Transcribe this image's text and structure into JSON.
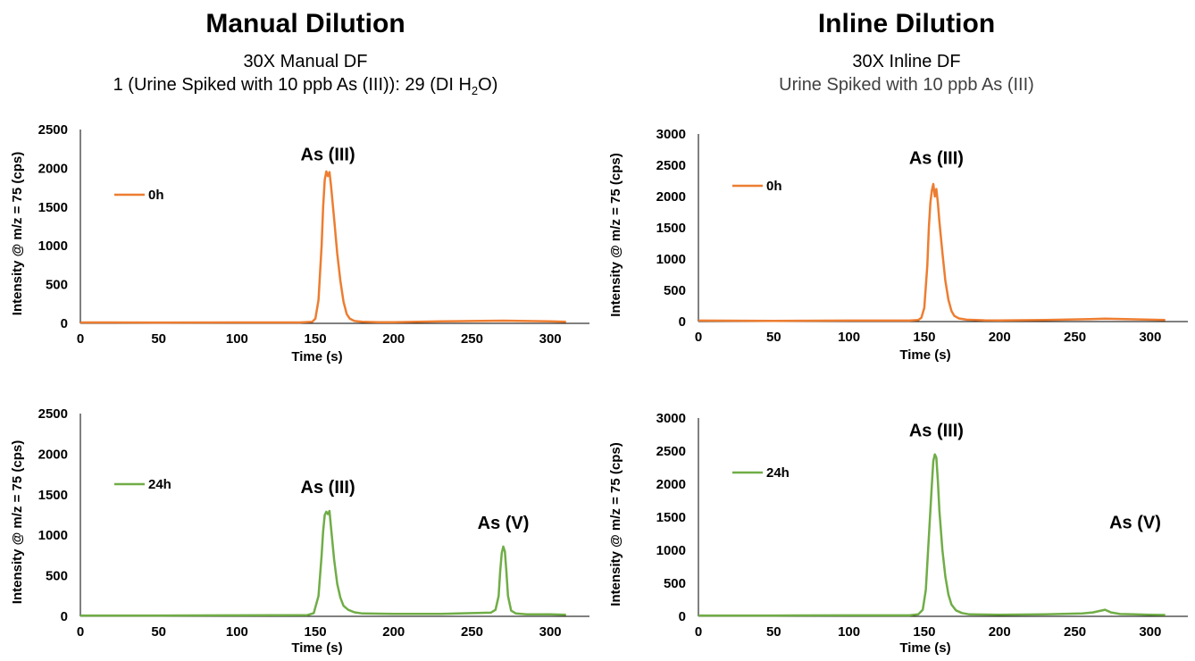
{
  "columns": [
    {
      "title": "Manual Dilution",
      "subtitle_line1": "30X Manual DF",
      "subtitle_line2_pre": "1 (Urine Spiked with 10 ppb As (III)): 29 (DI H",
      "subtitle_line2_sub": "2",
      "subtitle_line2_post": "O)"
    },
    {
      "title": "Inline Dilution",
      "subtitle_line1": "30X Inline DF",
      "subtitle_line2": "Urine Spiked with 10 ppb As (III)"
    }
  ],
  "colors": {
    "orange": "#ED7D31",
    "green": "#70AD47",
    "axis": "#000000"
  },
  "chart_data": [
    {
      "id": "manual-0h",
      "type": "line",
      "xlabel": "Time (s)",
      "ylabel": "Intensity @ m/z = 75 (cps)",
      "xlim": [
        0,
        325
      ],
      "ylim": [
        0,
        2500
      ],
      "xticks": [
        0,
        50,
        100,
        150,
        200,
        250,
        300
      ],
      "yticks": [
        0,
        500,
        1000,
        1500,
        2000,
        2500
      ],
      "grid": false,
      "legend_placement": "top-left",
      "series": [
        {
          "name": "0h",
          "color": "#ED7D31",
          "x": [
            0,
            50,
            100,
            140,
            148,
            150,
            152,
            154,
            155,
            156,
            157,
            158,
            159,
            160,
            162,
            164,
            166,
            168,
            170,
            172,
            175,
            180,
            190,
            200,
            230,
            250,
            270,
            300,
            310
          ],
          "y": [
            12,
            10,
            12,
            12,
            20,
            60,
            300,
            1000,
            1500,
            1850,
            1960,
            1900,
            1950,
            1780,
            1350,
            900,
            550,
            280,
            120,
            60,
            30,
            20,
            15,
            15,
            25,
            30,
            35,
            25,
            20
          ]
        }
      ],
      "annotations": [
        {
          "text": "As (III)",
          "x": 158,
          "y": 2100
        }
      ]
    },
    {
      "id": "inline-0h",
      "type": "line",
      "xlabel": "Time (s)",
      "ylabel": "Intensity @ m/z = 75 (cps)",
      "xlim": [
        0,
        325
      ],
      "ylim": [
        0,
        3000
      ],
      "xticks": [
        0,
        50,
        100,
        150,
        200,
        250,
        300
      ],
      "yticks": [
        0,
        500,
        1000,
        1500,
        2000,
        2500,
        3000
      ],
      "grid": false,
      "legend_placement": "top-left",
      "series": [
        {
          "name": "0h",
          "color": "#ED7D31",
          "x": [
            0,
            50,
            100,
            140,
            146,
            148,
            150,
            152,
            153,
            154,
            155,
            156,
            157,
            158,
            159,
            160,
            162,
            164,
            166,
            168,
            170,
            173,
            178,
            190,
            200,
            230,
            260,
            270,
            300,
            310
          ],
          "y": [
            15,
            12,
            15,
            15,
            25,
            60,
            220,
            900,
            1500,
            1900,
            2100,
            2200,
            2000,
            2120,
            1900,
            1600,
            1100,
            650,
            350,
            170,
            90,
            50,
            30,
            20,
            18,
            25,
            40,
            45,
            30,
            25
          ]
        }
      ],
      "annotations": [
        {
          "text": "As (III)",
          "x": 158,
          "y": 2520
        }
      ]
    },
    {
      "id": "manual-24h",
      "type": "line",
      "xlabel": "Time (s)",
      "ylabel": "Intensity @ m/z = 75 (cps)",
      "xlim": [
        0,
        325
      ],
      "ylim": [
        0,
        2500
      ],
      "xticks": [
        0,
        50,
        100,
        150,
        200,
        250,
        300
      ],
      "yticks": [
        0,
        500,
        1000,
        1500,
        2000,
        2500
      ],
      "grid": false,
      "legend_placement": "top-left",
      "series": [
        {
          "name": "24h",
          "color": "#70AD47",
          "x": [
            0,
            50,
            100,
            145,
            149,
            152,
            154,
            155,
            156,
            157,
            158,
            159,
            160,
            162,
            164,
            166,
            168,
            171,
            175,
            180,
            200,
            230,
            250,
            262,
            265,
            267,
            268,
            269,
            270,
            271,
            272,
            273,
            275,
            278,
            285,
            300,
            310
          ],
          "y": [
            10,
            10,
            12,
            15,
            40,
            250,
            750,
            1050,
            1250,
            1290,
            1260,
            1300,
            1100,
            700,
            400,
            230,
            130,
            80,
            50,
            35,
            30,
            30,
            40,
            45,
            80,
            250,
            550,
            780,
            860,
            800,
            550,
            250,
            70,
            35,
            25,
            25,
            20
          ]
        }
      ],
      "annotations": [
        {
          "text": "As (III)",
          "x": 158,
          "y": 1520
        },
        {
          "text": "As (V)",
          "x": 270,
          "y": 1080
        }
      ]
    },
    {
      "id": "inline-24h",
      "type": "line",
      "xlabel": "Time (s)",
      "ylabel": "Intensity @ m/z = 75 (cps)",
      "xlim": [
        0,
        325
      ],
      "ylim": [
        0,
        3000
      ],
      "xticks": [
        0,
        50,
        100,
        150,
        200,
        250,
        300
      ],
      "yticks": [
        0,
        500,
        1000,
        1500,
        2000,
        2500,
        3000
      ],
      "grid": false,
      "legend_placement": "top-left",
      "series": [
        {
          "name": "24h",
          "color": "#70AD47",
          "x": [
            0,
            50,
            100,
            140,
            146,
            149,
            151,
            153,
            155,
            156,
            157,
            158,
            159,
            160,
            162,
            164,
            166,
            168,
            171,
            175,
            180,
            200,
            230,
            255,
            262,
            266,
            270,
            274,
            280,
            300,
            310
          ],
          "y": [
            12,
            12,
            15,
            15,
            30,
            100,
            400,
            1200,
            2000,
            2350,
            2450,
            2400,
            2050,
            1600,
            1000,
            600,
            330,
            180,
            90,
            50,
            30,
            25,
            30,
            45,
            60,
            80,
            100,
            60,
            35,
            25,
            20
          ]
        }
      ],
      "annotations": [
        {
          "text": "As (III)",
          "x": 158,
          "y": 2720
        },
        {
          "text": "As (V)",
          "x": 290,
          "y": 1330
        }
      ]
    }
  ]
}
